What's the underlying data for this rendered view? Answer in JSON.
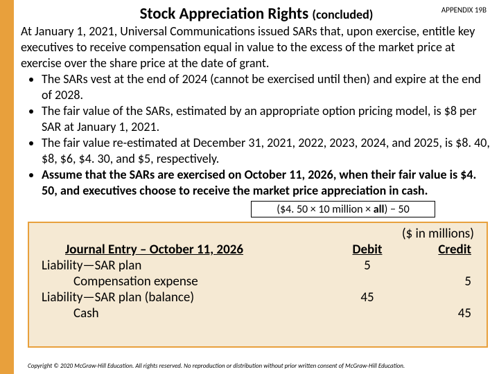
{
  "colors": {
    "accent": "#e8a03c",
    "table_bg": "#f5e9d3",
    "text": "#000000",
    "bg": "#ffffff"
  },
  "title": "Stock Appreciation Rights ",
  "title_suffix": "(concluded)",
  "appendix": "APPENDIX 19B",
  "intro": "At January 1, 2021, Universal Communications issued SARs that, upon exercise, entitle key executives to receive compensation equal in value to the excess of the market price at exercise over the share price at the date of grant.",
  "bullets": [
    {
      "text": "The SARs vest at the end of 2024 (cannot be exercised until then) and expire at the end of 2028.",
      "bold": false
    },
    {
      "text": "The fair value of the SARs, estimated by an appropriate option pricing model, is $8 per SAR at January 1, 2021.",
      "bold": false
    },
    {
      "text": "The fair value re-estimated at December 31, 2021, 2022, 2023, 2024, and 2025, is $8. 40, $8, $6, $4. 30, and $5, respectively.",
      "bold": false
    },
    {
      "text": "Assume that the SARs are exercised on October 11, 2026, when their fair value is $4. 50, and executives choose to receive the market price appreciation in cash.",
      "bold": true
    }
  ],
  "formula": {
    "prefix": "($4. 50 × 10 million × ",
    "all": "all",
    "suffix": ") − 50"
  },
  "journal": {
    "inmillions": "($ in millions)",
    "header_title": "Journal Entry – October 11, 2026",
    "header_debit": "Debit",
    "header_credit": "Credit",
    "rows": [
      {
        "desc": "Liability—SAR plan",
        "debit": "5",
        "credit": "",
        "indent": false
      },
      {
        "desc": "Compensation expense",
        "debit": "",
        "credit": "5",
        "indent": true
      },
      {
        "desc": "Liability—SAR plan (balance)",
        "debit": "45",
        "credit": "",
        "indent": false
      },
      {
        "desc": "Cash",
        "debit": "",
        "credit": "45",
        "indent": true
      }
    ]
  },
  "copyright": "Copyright © 2020 McGraw-Hill Education. All rights reserved. No reproduction or distribution without prior written consent of McGraw-Hill Education."
}
